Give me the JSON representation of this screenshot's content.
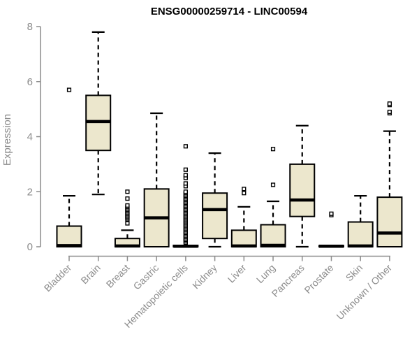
{
  "chart_data": {
    "type": "boxplot",
    "title": "ENSG00000259714 - LINC00594",
    "ylabel": "Expression",
    "xlabel": "",
    "ylim": [
      0,
      8
    ],
    "yticks": [
      0,
      2,
      4,
      6,
      8
    ],
    "grid": false,
    "legend": "none",
    "categories": [
      "Bladder",
      "Brain",
      "Breast",
      "Gastric",
      "Hematopoietic cells",
      "Kidney",
      "Liver",
      "Lung",
      "Pancreas",
      "Prostate",
      "Skin",
      "Unknown / Other"
    ],
    "series": [
      {
        "name": "Bladder",
        "low": 0,
        "q1": 0,
        "median": 0.04,
        "q3": 0.75,
        "high": 1.85,
        "outliers": [
          5.7
        ]
      },
      {
        "name": "Brain",
        "low": 1.9,
        "q1": 3.5,
        "median": 4.55,
        "q3": 5.5,
        "high": 7.8,
        "outliers": []
      },
      {
        "name": "Breast",
        "low": 0,
        "q1": 0,
        "median": 0.03,
        "q3": 0.3,
        "high": 0.6,
        "outliers": [
          0.85,
          1.0,
          1.05,
          1.1,
          1.15,
          1.2,
          1.25,
          1.3,
          1.35,
          1.4,
          1.45,
          1.5,
          1.75,
          2.0
        ]
      },
      {
        "name": "Gastric",
        "low": 0,
        "q1": 0,
        "median": 1.05,
        "q3": 2.1,
        "high": 4.85,
        "outliers": []
      },
      {
        "name": "Hematopoietic cells",
        "low": 0,
        "q1": 0,
        "median": 0.02,
        "q3": 0.05,
        "high": 0.05,
        "outliers": [
          0.15,
          0.2,
          0.25,
          0.3,
          0.35,
          0.4,
          0.45,
          0.5,
          0.55,
          0.6,
          0.65,
          0.7,
          0.75,
          0.8,
          0.85,
          0.9,
          0.95,
          1.0,
          1.05,
          1.1,
          1.15,
          1.2,
          1.25,
          1.3,
          1.35,
          1.4,
          1.45,
          1.5,
          1.55,
          1.6,
          1.65,
          1.7,
          1.75,
          1.8,
          1.85,
          1.9,
          1.95,
          2.0,
          2.2,
          2.3,
          2.5,
          2.6,
          2.8,
          3.65
        ]
      },
      {
        "name": "Kidney",
        "low": 0,
        "q1": 0.3,
        "median": 1.35,
        "q3": 1.95,
        "high": 3.4,
        "outliers": []
      },
      {
        "name": "Liver",
        "low": 0,
        "q1": 0,
        "median": 0.03,
        "q3": 0.6,
        "high": 1.45,
        "outliers": [
          1.95,
          2.1
        ]
      },
      {
        "name": "Lung",
        "low": 0,
        "q1": 0,
        "median": 0.05,
        "q3": 0.8,
        "high": 1.65,
        "outliers": [
          2.25,
          3.55
        ]
      },
      {
        "name": "Pancreas",
        "low": 0,
        "q1": 1.1,
        "median": 1.7,
        "q3": 3.0,
        "high": 4.4,
        "outliers": []
      },
      {
        "name": "Prostate",
        "low": 0,
        "q1": 0,
        "median": 0.02,
        "q3": 0.04,
        "high": 0.04,
        "outliers": [
          1.15,
          1.2
        ]
      },
      {
        "name": "Skin",
        "low": 0,
        "q1": 0,
        "median": 0.03,
        "q3": 0.9,
        "high": 1.85,
        "outliers": []
      },
      {
        "name": "Unknown / Other",
        "low": 0,
        "q1": 0,
        "median": 0.5,
        "q3": 1.8,
        "high": 4.2,
        "outliers": [
          4.85,
          4.9,
          5.15,
          5.2
        ]
      }
    ],
    "colors": {
      "box_fill": "#ece7cd",
      "box_border": "#000000",
      "median": "#000000",
      "whisker": "#000000",
      "outlier": "#000000",
      "axis": "#8c8c8c",
      "title": "#000000",
      "background": "#ffffff"
    }
  }
}
